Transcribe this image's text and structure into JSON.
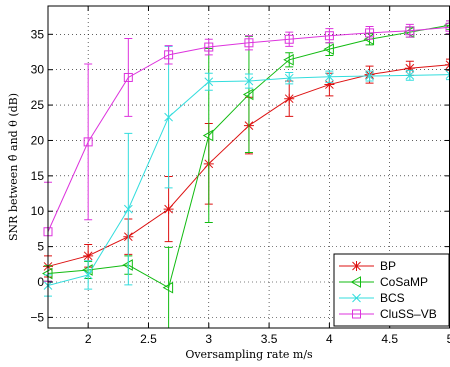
{
  "chart_data": {
    "type": "line",
    "xlabel": "Oversampling rate m/s",
    "ylabel": "SNR between θ̂ and θ (dB)",
    "xlim": [
      1.667,
      5
    ],
    "ylim": [
      -6.5,
      39
    ],
    "xticks": [
      2,
      2.5,
      3,
      3.5,
      4,
      4.5,
      5
    ],
    "xtick_labels": [
      "2",
      "2.5",
      "3",
      "3.5",
      "4",
      "4.5",
      "5"
    ],
    "yticks": [
      -5,
      0,
      5,
      10,
      15,
      20,
      25,
      30,
      35
    ],
    "ytick_labels": [
      "−5",
      "0",
      "5",
      "10",
      "15",
      "20",
      "25",
      "30",
      "35"
    ],
    "grid": true,
    "legend_position": "bottom-right",
    "x": [
      1.667,
      2,
      2.333,
      2.667,
      3,
      3.333,
      3.667,
      4,
      4.333,
      4.667,
      5
    ],
    "series": [
      {
        "name": "BP",
        "color": "#dd1111",
        "marker": "star",
        "values": [
          2.2,
          3.7,
          6.4,
          10.3,
          16.7,
          22.1,
          25.9,
          27.9,
          29.3,
          30.2,
          30.7
        ],
        "errors": [
          1.5,
          1.6,
          2.5,
          4.6,
          5.7,
          4.0,
          2.5,
          1.6,
          1.2,
          1.0,
          0.8
        ]
      },
      {
        "name": "CoSaMP",
        "color": "#11bb11",
        "marker": "triangle-left",
        "values": [
          1.2,
          1.7,
          2.4,
          -0.8,
          20.7,
          26.5,
          31.4,
          32.9,
          34.3,
          35.3,
          36.3
        ],
        "errors": [
          1.1,
          1.2,
          1.3,
          5.7,
          12.3,
          8.2,
          1.0,
          0.9,
          0.8,
          0.7,
          0.6
        ]
      },
      {
        "name": "BCS",
        "color": "#33dddd",
        "marker": "x",
        "values": [
          -0.5,
          1.0,
          10.3,
          23.3,
          28.3,
          28.4,
          28.8,
          29.0,
          29.1,
          29.2,
          29.3
        ],
        "errors": [
          1.5,
          2.0,
          10.7,
          10.0,
          1.2,
          1.0,
          0.8,
          0.8,
          0.7,
          0.7,
          0.7
        ]
      },
      {
        "name": "CluSS–VB",
        "color": "#dd33dd",
        "marker": "square",
        "values": [
          7.1,
          19.8,
          28.9,
          32.1,
          33.2,
          33.8,
          34.3,
          34.8,
          35.2,
          35.5,
          36.0
        ],
        "errors": [
          7.0,
          11.0,
          5.5,
          1.3,
          1.1,
          1.0,
          1.0,
          1.0,
          0.9,
          0.9,
          0.9
        ]
      }
    ]
  }
}
